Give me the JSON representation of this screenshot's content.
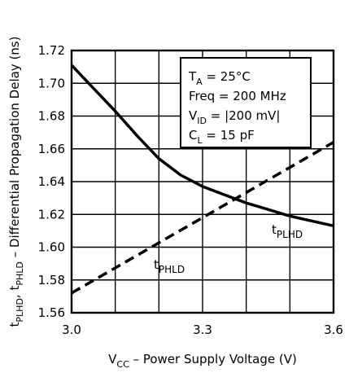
{
  "chart_data": {
    "type": "line",
    "xlim": [
      3.0,
      3.6
    ],
    "ylim": [
      1.56,
      1.72
    ],
    "x_ticks": [
      "3.0",
      "3.3",
      "3.6"
    ],
    "y_ticks": [
      "1.56",
      "1.58",
      "1.60",
      "1.62",
      "1.64",
      "1.66",
      "1.68",
      "1.70",
      "1.72"
    ],
    "grid": true,
    "xlabel": {
      "v": "V",
      "v_sub": "CC",
      "rest": " – Power Supply Voltage (V)"
    },
    "ylabel": {
      "t1": "t",
      "t1_sub": "PLHD",
      "sep": ", ",
      "t2": "t",
      "t2_sub": "PHLD",
      "rest": " – Differential Propagation Delay (ns)"
    },
    "conditions": [
      {
        "main": "T",
        "sub": "A",
        "rest": " = 25°C"
      },
      {
        "main": "Freq = 200 MHz",
        "sub": "",
        "rest": ""
      },
      {
        "main": "V",
        "sub": "ID",
        "rest": " = |200 mV|"
      },
      {
        "main": "C",
        "sub": "L",
        "rest": " = 15 pF"
      }
    ],
    "series": [
      {
        "name_main": "t",
        "name_sub": "PLHD",
        "style": "solid",
        "x": [
          3.0,
          3.05,
          3.1,
          3.15,
          3.2,
          3.25,
          3.3,
          3.35,
          3.4,
          3.45,
          3.5,
          3.55,
          3.6
        ],
        "y": [
          1.711,
          1.697,
          1.683,
          1.668,
          1.654,
          1.644,
          1.637,
          1.632,
          1.627,
          1.623,
          1.619,
          1.616,
          1.613
        ]
      },
      {
        "name_main": "t",
        "name_sub": "PHLD",
        "style": "dashed",
        "x": [
          3.0,
          3.6
        ],
        "y": [
          1.572,
          1.664
        ]
      }
    ]
  }
}
